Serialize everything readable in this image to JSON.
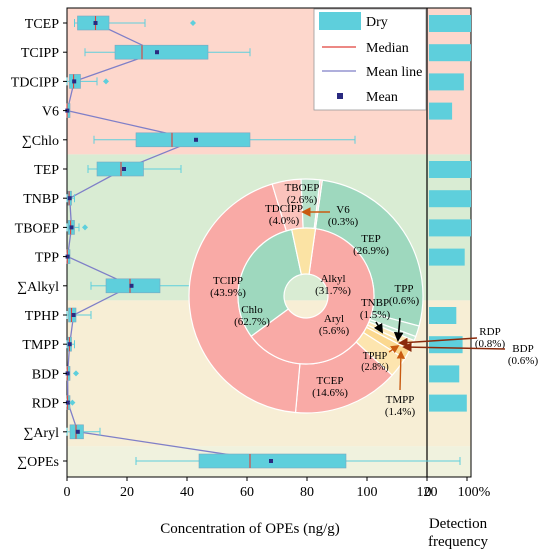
{
  "chart_data": {
    "type": "box",
    "xlabel": "Concentration of OPEs (ng/g)",
    "xlim": [
      0,
      120
    ],
    "xticks": [
      0,
      20,
      40,
      60,
      80,
      100,
      120
    ],
    "legend": {
      "placement": "top-right",
      "entries": [
        {
          "key": "box",
          "label": "Dry"
        },
        {
          "key": "median",
          "label": "Median"
        },
        {
          "key": "meanline",
          "label": "Mean line"
        },
        {
          "key": "mean",
          "label": "Mean"
        }
      ]
    },
    "colors": {
      "box": "#5ecfdc",
      "median": "#e0403a",
      "meanline": "#7f7fc8",
      "mean": "#2a2a80",
      "band_chlo": "#fdd7cc",
      "band_alkyl": "#d9ecd3",
      "band_aryl": "#f7eed5",
      "band_total": "#f0f2de"
    },
    "categories": [
      "TCEP",
      "TCIPP",
      "TDCIPP",
      "V6",
      "∑Chlo",
      "TEP",
      "TNBP",
      "TBOEP",
      "TPP",
      "∑Alkyl",
      "TPHP",
      "TMPP",
      "BDP",
      "RDP",
      "∑Aryl",
      "∑OPEs"
    ],
    "boxes": [
      {
        "name": "TCEP",
        "whisker_low": 2.5,
        "q1": 3.5,
        "median": 9.5,
        "q3": 14,
        "whisker_high": 26,
        "mean": 9.5,
        "outliers": [
          42
        ]
      },
      {
        "name": "TCIPP",
        "whisker_low": 6,
        "q1": 16,
        "median": 25,
        "q3": 47,
        "whisker_high": 61,
        "mean": 30,
        "outliers": []
      },
      {
        "name": "TDCIPP",
        "whisker_low": 0,
        "q1": 0.8,
        "median": 2.2,
        "q3": 4.5,
        "whisker_high": 10,
        "mean": 2.4,
        "outliers": [
          13
        ]
      },
      {
        "name": "V6",
        "whisker_low": 0,
        "q1": 0,
        "median": 0,
        "q3": 0.2,
        "whisker_high": 0.3,
        "mean": 0.1,
        "outliers": []
      },
      {
        "name": "∑Chlo",
        "whisker_low": 9,
        "q1": 23,
        "median": 35,
        "q3": 61,
        "whisker_high": 96,
        "mean": 43,
        "outliers": []
      },
      {
        "name": "TEP",
        "whisker_low": 7,
        "q1": 10,
        "median": 18,
        "q3": 25.5,
        "whisker_high": 38,
        "mean": 19,
        "outliers": []
      },
      {
        "name": "TNBP",
        "whisker_low": 0,
        "q1": 0.3,
        "median": 0.7,
        "q3": 1.5,
        "whisker_high": 2.5,
        "mean": 0.9,
        "outliers": []
      },
      {
        "name": "TBOEP",
        "whisker_low": 0,
        "q1": 0.4,
        "median": 1.2,
        "q3": 2.5,
        "whisker_high": 4,
        "mean": 1.5,
        "outliers": [
          6
        ]
      },
      {
        "name": "TPP",
        "whisker_low": 0,
        "q1": 0,
        "median": 0.1,
        "q3": 0.3,
        "whisker_high": 0.5,
        "mean": 0.2,
        "outliers": []
      },
      {
        "name": "∑Alkyl",
        "whisker_low": 8,
        "q1": 13,
        "median": 21,
        "q3": 31,
        "whisker_high": 42,
        "mean": 21.5,
        "outliers": []
      },
      {
        "name": "TPHP",
        "whisker_low": 0,
        "q1": 0.5,
        "median": 1.5,
        "q3": 3,
        "whisker_high": 8,
        "mean": 2.2,
        "outliers": []
      },
      {
        "name": "TMPP",
        "whisker_low": 0,
        "q1": 0.2,
        "median": 0.8,
        "q3": 1.5,
        "whisker_high": 2.5,
        "mean": 0.9,
        "outliers": []
      },
      {
        "name": "BDP",
        "whisker_low": 0,
        "q1": 0,
        "median": 0.1,
        "q3": 0.3,
        "whisker_high": 0.5,
        "mean": 0.2,
        "outliers": [
          3
        ]
      },
      {
        "name": "RDP",
        "whisker_low": 0,
        "q1": 0,
        "median": 0.2,
        "q3": 0.5,
        "whisker_high": 0.8,
        "mean": 0.3,
        "outliers": [
          1.8
        ]
      },
      {
        "name": "∑Aryl",
        "whisker_low": 0,
        "q1": 1,
        "median": 3,
        "q3": 5.5,
        "whisker_high": 11,
        "mean": 3.6,
        "outliers": []
      },
      {
        "name": "∑OPEs",
        "whisker_low": 23,
        "q1": 44,
        "median": 61,
        "q3": 93,
        "whisker_high": 131,
        "mean": 68,
        "outliers": []
      }
    ],
    "detection_frequency": {
      "label_line1": "Detection",
      "label_line2": "frequency",
      "xlim": [
        0,
        100
      ],
      "tick_labels": [
        "0",
        "100%"
      ],
      "values": {
        "TCEP": 100,
        "TCIPP": 100,
        "TDCIPP": 83,
        "V6": 55,
        "TEP": 100,
        "TNBP": 100,
        "TBOEP": 100,
        "TPP": 85,
        "TPHP": 65,
        "TMPP": 80,
        "BDP": 72,
        "RDP": 90
      }
    },
    "pie": {
      "type": "pie",
      "inner_ring": [
        {
          "label": "Chlo",
          "pct": "(62.7%)",
          "value": 62.7,
          "color": "#f9aaa6"
        },
        {
          "label": "Alkyl",
          "pct": "(31.7%)",
          "value": 31.7,
          "color": "#9ed8be"
        },
        {
          "label": "Aryl",
          "pct": "(5.6%)",
          "value": 5.6,
          "color": "#fbe3a4"
        }
      ],
      "outer_ring": [
        {
          "label": "TEP",
          "pct": "(26.9%)",
          "value": 26.9,
          "color": "#9ed8be"
        },
        {
          "label": "TNBP",
          "pct": "(1.5%)",
          "value": 1.5,
          "color": "#b7e1ca"
        },
        {
          "label": "TPP",
          "pct": "(0.6%)",
          "value": 0.6,
          "color": "#c6e8d3"
        },
        {
          "label": "RDP",
          "pct": "(0.8%)",
          "value": 0.8,
          "color": "#fde9b8"
        },
        {
          "label": "BDP",
          "pct": "(0.6%)",
          "value": 0.6,
          "color": "#fbe0a0"
        },
        {
          "label": "TMPP",
          "pct": "(1.4%)",
          "value": 1.4,
          "color": "#fbd890"
        },
        {
          "label": "TPHP",
          "pct": "(2.8%)",
          "value": 2.8,
          "color": "#fde5af"
        },
        {
          "label": "TCEP",
          "pct": "(14.6%)",
          "value": 14.6,
          "color": "#f9aaa6"
        },
        {
          "label": "TCIPP",
          "pct": "(43.9%)",
          "value": 43.9,
          "color": "#f9aaa6"
        },
        {
          "label": "TDCIPP",
          "pct": "(4.0%)",
          "value": 4.0,
          "color": "#fbc3bc"
        },
        {
          "label": "TBOEP",
          "pct": "(2.6%)",
          "value": 2.6,
          "color": "#b7e1ca"
        },
        {
          "label": "V6",
          "pct": "(0.3%)",
          "value": 0.3,
          "color": "#fcd3cd"
        }
      ]
    }
  }
}
